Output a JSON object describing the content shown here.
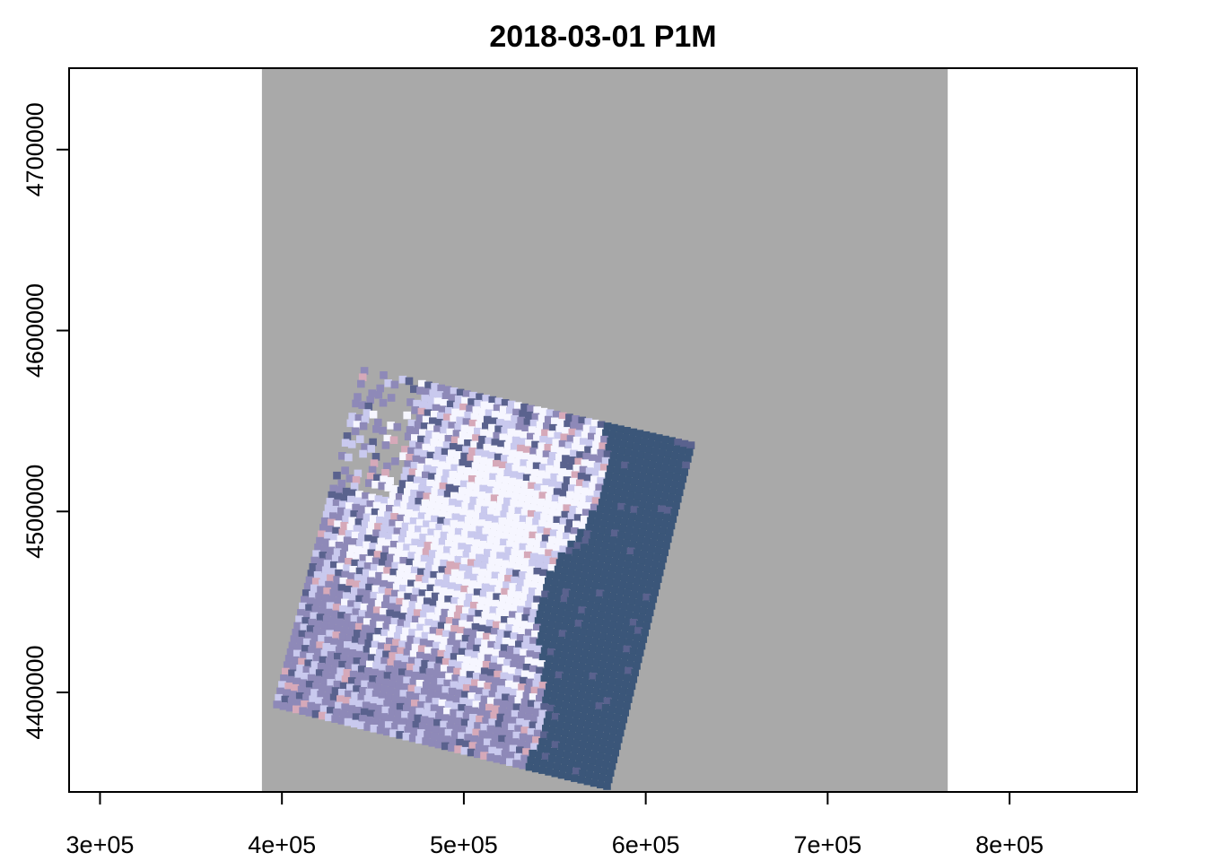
{
  "chart_data": {
    "type": "heatmap",
    "title": "2018-03-01 P1M",
    "xlabel": "",
    "ylabel": "",
    "xlim": [
      283000,
      870000
    ],
    "ylim": [
      4345000,
      4745000
    ],
    "x_ticks": [
      300000,
      400000,
      500000,
      600000,
      700000,
      800000
    ],
    "x_tick_labels": [
      "3e+05",
      "4e+05",
      "5e+05",
      "6e+05",
      "7e+05",
      "8e+05"
    ],
    "y_ticks": [
      4400000,
      4500000,
      4600000,
      4700000
    ],
    "y_tick_labels": [
      "4400000",
      "4500000",
      "4600000",
      "4700000"
    ],
    "grid": false,
    "legend": "none",
    "nodata_extent": {
      "xmin": 389000,
      "xmax": 766000,
      "ymin": 4345000,
      "ymax": 4745000
    },
    "scene_footprint": [
      {
        "x": 444000,
        "y": 4580000
      },
      {
        "x": 627000,
        "y": 4538000
      },
      {
        "x": 580000,
        "y": 4346000
      },
      {
        "x": 395000,
        "y": 4392000
      }
    ],
    "water_edge_fraction": 0.72,
    "colors": {
      "nodata": "#a9a9a9",
      "snow": "#f6f6ff",
      "light": "#c9c9ee",
      "mixed": "#8e89b8",
      "dark": "#5a628e",
      "water": "#3b5679",
      "pink": "#d6a9b9",
      "axis": "#000000"
    }
  }
}
